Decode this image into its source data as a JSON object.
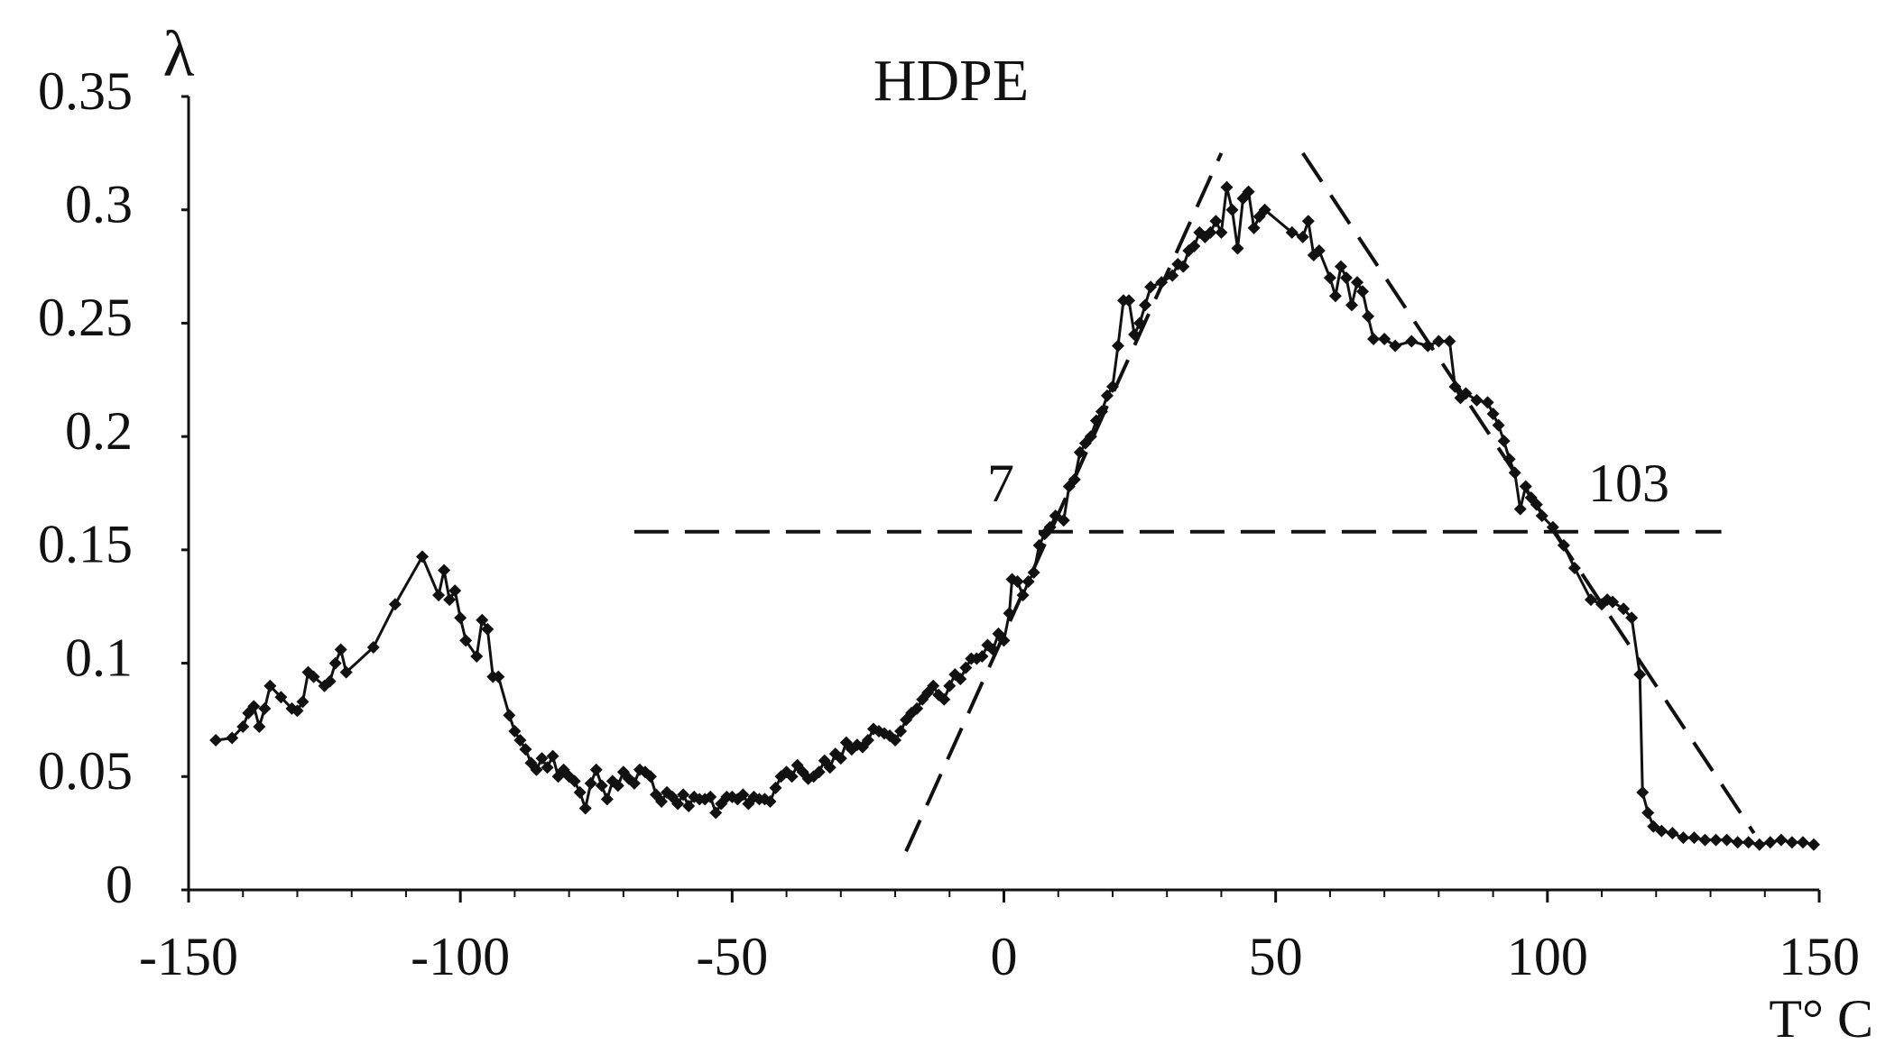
{
  "chart_data": {
    "type": "line",
    "title": "HDPE",
    "ylabel": "λ",
    "xlabel": "T° C",
    "x": [
      -145,
      -142,
      -140,
      -139,
      -138,
      -137,
      -136,
      -135,
      -133,
      -131,
      -130,
      -129,
      -128,
      -127,
      -125,
      -124,
      -123,
      -122,
      -121,
      -116,
      -112,
      -107,
      -104,
      -103,
      -102,
      -101,
      -100,
      -99,
      -97,
      -96,
      -95,
      -94,
      -93,
      -91,
      -90,
      -89,
      -88,
      -87,
      -86,
      -85,
      -84,
      -83,
      -82,
      -81,
      -80,
      -79,
      -78,
      -77,
      -76,
      -75,
      -74,
      -73,
      -72,
      -71,
      -70,
      -69,
      -68,
      -67,
      -66,
      -65,
      -64,
      -63,
      -62,
      -61,
      -60,
      -59,
      -58,
      -57,
      -56,
      -55,
      -54,
      -53,
      -52,
      -51,
      -50,
      -49,
      -48,
      -47,
      -46,
      -45,
      -44,
      -43,
      -42,
      -41,
      -40,
      -39,
      -38,
      -37,
      -36,
      -35,
      -34,
      -33,
      -32,
      -31,
      -30,
      -29,
      -28,
      -27,
      -26,
      -25,
      -24,
      -23,
      -22,
      -21,
      -20,
      -19,
      -18,
      -17,
      -16,
      -15,
      -14,
      -13,
      -12,
      -11,
      -10,
      -9,
      -8,
      -7,
      -6,
      -5,
      -4,
      -3,
      -2,
      -1,
      0,
      1,
      1.5,
      2.5,
      3.5,
      4.5,
      5.5,
      6.5,
      7.5,
      8.5,
      9.5,
      11,
      12,
      13,
      14,
      15,
      16,
      17,
      18,
      19,
      20,
      21,
      22,
      23,
      24,
      25,
      26,
      27,
      29,
      31,
      32,
      33,
      34,
      35,
      36,
      37,
      38,
      39,
      40,
      41,
      42,
      43,
      44,
      45,
      46,
      47,
      48,
      53,
      55,
      56,
      57,
      58,
      60,
      61,
      62,
      63,
      64,
      65,
      66,
      67,
      68,
      70,
      72,
      75,
      78,
      80,
      82,
      83,
      84,
      85,
      87,
      89,
      90,
      91,
      92,
      93,
      94,
      95,
      96,
      97,
      98,
      99,
      101,
      103,
      105,
      108,
      110,
      111,
      112,
      114,
      115.5,
      117,
      117.5,
      118.5,
      119.5,
      121,
      123,
      125,
      127,
      129,
      131,
      133,
      135,
      137,
      139,
      141,
      143,
      145,
      147,
      149
    ],
    "series": [
      {
        "color": "#111111",
        "values": [
          0.066,
          0.067,
          0.072,
          0.078,
          0.081,
          0.072,
          0.08,
          0.09,
          0.085,
          0.08,
          0.079,
          0.083,
          0.096,
          0.094,
          0.09,
          0.092,
          0.1,
          0.106,
          0.096,
          0.107,
          0.126,
          0.147,
          0.13,
          0.141,
          0.128,
          0.132,
          0.12,
          0.11,
          0.103,
          0.119,
          0.115,
          0.094,
          0.094,
          0.077,
          0.07,
          0.066,
          0.062,
          0.056,
          0.053,
          0.058,
          0.054,
          0.059,
          0.05,
          0.053,
          0.05,
          0.048,
          0.043,
          0.036,
          0.047,
          0.053,
          0.046,
          0.04,
          0.048,
          0.046,
          0.052,
          0.049,
          0.047,
          0.053,
          0.052,
          0.05,
          0.042,
          0.039,
          0.043,
          0.041,
          0.038,
          0.042,
          0.037,
          0.041,
          0.04,
          0.04,
          0.041,
          0.034,
          0.038,
          0.041,
          0.041,
          0.04,
          0.042,
          0.038,
          0.041,
          0.04,
          0.04,
          0.039,
          0.045,
          0.05,
          0.052,
          0.05,
          0.055,
          0.052,
          0.049,
          0.05,
          0.052,
          0.057,
          0.054,
          0.06,
          0.058,
          0.065,
          0.062,
          0.064,
          0.063,
          0.066,
          0.071,
          0.07,
          0.069,
          0.068,
          0.066,
          0.07,
          0.075,
          0.078,
          0.08,
          0.084,
          0.087,
          0.09,
          0.086,
          0.084,
          0.09,
          0.095,
          0.093,
          0.098,
          0.102,
          0.102,
          0.103,
          0.108,
          0.106,
          0.113,
          0.11,
          0.122,
          0.137,
          0.136,
          0.13,
          0.136,
          0.14,
          0.152,
          0.157,
          0.16,
          0.165,
          0.163,
          0.178,
          0.181,
          0.193,
          0.197,
          0.2,
          0.207,
          0.211,
          0.218,
          0.222,
          0.24,
          0.26,
          0.26,
          0.245,
          0.25,
          0.258,
          0.266,
          0.268,
          0.271,
          0.276,
          0.275,
          0.282,
          0.284,
          0.29,
          0.288,
          0.29,
          0.295,
          0.29,
          0.31,
          0.3,
          0.283,
          0.305,
          0.308,
          0.292,
          0.297,
          0.3,
          0.29,
          0.288,
          0.295,
          0.28,
          0.282,
          0.27,
          0.262,
          0.275,
          0.27,
          0.258,
          0.268,
          0.264,
          0.253,
          0.243,
          0.243,
          0.24,
          0.242,
          0.24,
          0.242,
          0.242,
          0.222,
          0.217,
          0.219,
          0.216,
          0.215,
          0.21,
          0.205,
          0.198,
          0.19,
          0.184,
          0.168,
          0.178,
          0.173,
          0.17,
          0.165,
          0.16,
          0.152,
          0.142,
          0.128,
          0.126,
          0.128,
          0.127,
          0.124,
          0.12,
          0.095,
          0.043,
          0.034,
          0.028,
          0.026,
          0.025,
          0.023,
          0.023,
          0.022,
          0.022,
          0.022,
          0.021,
          0.021,
          0.02,
          0.021,
          0.022,
          0.021,
          0.021,
          0.02
        ]
      }
    ],
    "reference_lines": [
      {
        "x": [
          -68,
          132
        ],
        "y": [
          0.158,
          0.158
        ]
      },
      {
        "x": [
          -18,
          40
        ],
        "y": [
          0.017,
          0.325
        ]
      },
      {
        "x": [
          55,
          138
        ],
        "y": [
          0.325,
          0.025
        ]
      }
    ],
    "annotations": [
      "7",
      "103"
    ],
    "xlim": [
      -150,
      150
    ],
    "xticks": [
      -150,
      -100,
      -50,
      0,
      50,
      100,
      150
    ],
    "xminorticks": [
      -140,
      -130,
      -120,
      -110,
      -90,
      -80,
      -70,
      -60,
      -40,
      -30,
      -20,
      -10,
      10,
      20,
      30,
      40,
      60,
      70,
      80,
      90,
      110,
      120,
      130,
      140
    ],
    "ylim": [
      0,
      0.35
    ],
    "yticks": [
      0,
      0.05,
      0.1,
      0.15,
      0.2,
      0.25,
      0.3,
      0.35
    ]
  }
}
